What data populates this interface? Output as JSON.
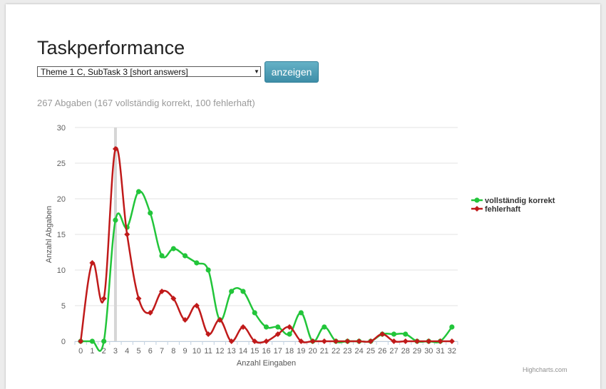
{
  "page": {
    "title": "Taskperformance",
    "select_value": "Theme 1 C, SubTask 3 [short answers]",
    "button_label": "anzeigen",
    "summary": "267 Abgaben (167 vollständig korrekt, 100 fehlerhaft)",
    "credit": "Highcharts.com"
  },
  "chart_data": {
    "type": "line",
    "smoothed": true,
    "title": "",
    "xlabel": "Anzahl Eingaben",
    "ylabel": "Anzahl Abgaben",
    "x": [
      0,
      1,
      2,
      3,
      4,
      5,
      6,
      7,
      8,
      9,
      10,
      11,
      12,
      13,
      14,
      15,
      16,
      17,
      18,
      19,
      20,
      21,
      22,
      23,
      24,
      25,
      26,
      27,
      28,
      29,
      30,
      31,
      32
    ],
    "ylim": [
      0,
      30
    ],
    "yticks": [
      0,
      5,
      10,
      15,
      20,
      25,
      30
    ],
    "grid": true,
    "highlight_x": 3,
    "legend_position": "right",
    "series": [
      {
        "name": "vollständig korrekt",
        "color": "#22c53a",
        "marker": "circle",
        "values": [
          0,
          0,
          0,
          17,
          16,
          21,
          18,
          12,
          13,
          12,
          11,
          10,
          3,
          7,
          7,
          4,
          2,
          2,
          1,
          4,
          0,
          2,
          0,
          0,
          0,
          0,
          1,
          1,
          1,
          0,
          0,
          0,
          2
        ]
      },
      {
        "name": "fehlerhaft",
        "color": "#c01a1a",
        "marker": "diamond",
        "values": [
          0,
          11,
          6,
          27,
          15,
          6,
          4,
          7,
          6,
          3,
          5,
          1,
          3,
          0,
          2,
          0,
          0,
          1,
          2,
          0,
          0,
          0,
          0,
          0,
          0,
          0,
          1,
          0,
          0,
          0,
          0,
          0,
          0
        ]
      }
    ]
  }
}
